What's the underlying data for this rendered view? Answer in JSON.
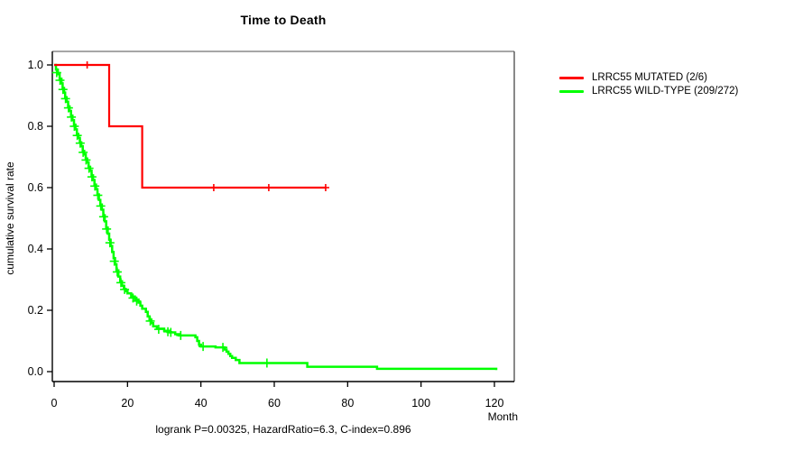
{
  "chart_data": {
    "type": "line",
    "subtype": "kaplan-meier-step",
    "title": "Time to Death",
    "xlabel": "Month",
    "ylabel": "cumulative survival rate",
    "annotation": "logrank P=0.00325, HazardRatio=6.3, C-index=0.896",
    "xlim": [
      0,
      126
    ],
    "ylim": [
      0.0,
      1.0
    ],
    "x_ticks": [
      0,
      20,
      40,
      60,
      80,
      100,
      120
    ],
    "y_ticks": [
      0.0,
      0.2,
      0.4,
      0.6,
      0.8,
      1.0
    ],
    "grid": "off",
    "legend_position": "outside-right",
    "series": [
      {
        "name": "LRRC55 MUTATED (2/6)",
        "color": "#ff0000",
        "events": "2 deaths of 6 patients",
        "steps": [
          [
            0,
            1.0
          ],
          [
            15,
            0.8
          ],
          [
            24,
            0.6
          ],
          [
            74,
            0.6
          ]
        ],
        "censors": [
          [
            9,
            1.0
          ],
          [
            43.5,
            0.6
          ],
          [
            58.5,
            0.6
          ],
          [
            74,
            0.6
          ]
        ]
      },
      {
        "name": "LRRC55 WILD-TYPE (209/272)",
        "color": "#00ff00",
        "events": "209 deaths of 272 patients",
        "steps": [
          [
            0,
            1.0
          ],
          [
            0.5,
            0.985
          ],
          [
            1,
            0.97
          ],
          [
            1.5,
            0.955
          ],
          [
            2,
            0.94
          ],
          [
            2.3,
            0.925
          ],
          [
            2.7,
            0.91
          ],
          [
            3,
            0.895
          ],
          [
            3.4,
            0.88
          ],
          [
            3.8,
            0.865
          ],
          [
            4.2,
            0.85
          ],
          [
            4.6,
            0.835
          ],
          [
            5,
            0.82
          ],
          [
            5.4,
            0.805
          ],
          [
            5.8,
            0.79
          ],
          [
            6.2,
            0.775
          ],
          [
            6.6,
            0.762
          ],
          [
            7,
            0.748
          ],
          [
            7.4,
            0.735
          ],
          [
            7.8,
            0.72
          ],
          [
            8.2,
            0.708
          ],
          [
            8.6,
            0.695
          ],
          [
            9,
            0.682
          ],
          [
            9.4,
            0.668
          ],
          [
            9.8,
            0.655
          ],
          [
            10.2,
            0.64
          ],
          [
            10.6,
            0.625
          ],
          [
            11,
            0.61
          ],
          [
            11.4,
            0.595
          ],
          [
            11.8,
            0.578
          ],
          [
            12.2,
            0.56
          ],
          [
            12.6,
            0.545
          ],
          [
            13,
            0.528
          ],
          [
            13.4,
            0.51
          ],
          [
            13.8,
            0.49
          ],
          [
            14.2,
            0.47
          ],
          [
            14.6,
            0.45
          ],
          [
            15,
            0.43
          ],
          [
            15.4,
            0.41
          ],
          [
            15.8,
            0.39
          ],
          [
            16.2,
            0.37
          ],
          [
            16.6,
            0.35
          ],
          [
            17,
            0.33
          ],
          [
            17.5,
            0.31
          ],
          [
            18,
            0.295
          ],
          [
            18.5,
            0.28
          ],
          [
            19,
            0.27
          ],
          [
            19.5,
            0.262
          ],
          [
            20,
            0.255
          ],
          [
            21,
            0.245
          ],
          [
            22,
            0.235
          ],
          [
            23,
            0.225
          ],
          [
            23.5,
            0.215
          ],
          [
            24,
            0.205
          ],
          [
            25,
            0.195
          ],
          [
            25.5,
            0.18
          ],
          [
            26,
            0.17
          ],
          [
            26.5,
            0.158
          ],
          [
            27,
            0.148
          ],
          [
            28,
            0.14
          ],
          [
            30,
            0.133
          ],
          [
            31.5,
            0.128
          ],
          [
            33,
            0.122
          ],
          [
            34,
            0.118
          ],
          [
            38.5,
            0.112
          ],
          [
            39,
            0.1
          ],
          [
            39.5,
            0.088
          ],
          [
            40,
            0.082
          ],
          [
            44,
            0.079
          ],
          [
            46.5,
            0.072
          ],
          [
            47,
            0.065
          ],
          [
            47.5,
            0.058
          ],
          [
            48,
            0.051
          ],
          [
            48.5,
            0.045
          ],
          [
            49.5,
            0.038
          ],
          [
            50.5,
            0.028
          ],
          [
            69,
            0.016
          ],
          [
            88,
            0.009
          ],
          [
            120.5,
            0.005
          ]
        ],
        "censors": [
          [
            0.7,
            0.975
          ],
          [
            1.6,
            0.95
          ],
          [
            2.4,
            0.92
          ],
          [
            3.1,
            0.89
          ],
          [
            3.9,
            0.86
          ],
          [
            4.7,
            0.83
          ],
          [
            5.5,
            0.8
          ],
          [
            6.3,
            0.77
          ],
          [
            7.1,
            0.745
          ],
          [
            7.9,
            0.715
          ],
          [
            8.7,
            0.69
          ],
          [
            9.5,
            0.663
          ],
          [
            10.3,
            0.635
          ],
          [
            11.1,
            0.605
          ],
          [
            11.9,
            0.575
          ],
          [
            12.7,
            0.54
          ],
          [
            13.5,
            0.505
          ],
          [
            14.3,
            0.465
          ],
          [
            15.2,
            0.42
          ],
          [
            16.4,
            0.36
          ],
          [
            17.2,
            0.325
          ],
          [
            18.2,
            0.29
          ],
          [
            19.2,
            0.268
          ],
          [
            21.5,
            0.24
          ],
          [
            22.5,
            0.23
          ],
          [
            26.2,
            0.165
          ],
          [
            28.5,
            0.138
          ],
          [
            31,
            0.13
          ],
          [
            31.8,
            0.128
          ],
          [
            34.5,
            0.118
          ],
          [
            40.6,
            0.082
          ],
          [
            46,
            0.079
          ],
          [
            58,
            0.028
          ]
        ]
      }
    ]
  },
  "legend": {
    "items": [
      {
        "label": "LRRC55 MUTATED (2/6)",
        "color": "#ff0000"
      },
      {
        "label": "LRRC55 WILD-TYPE (209/272)",
        "color": "#00ff00"
      }
    ]
  },
  "colors": {
    "mutated": "#ff0000",
    "wildtype": "#00ff00",
    "axis": "#000000",
    "box_top": "#888888",
    "box_right": "#555555",
    "text": "#000000"
  }
}
